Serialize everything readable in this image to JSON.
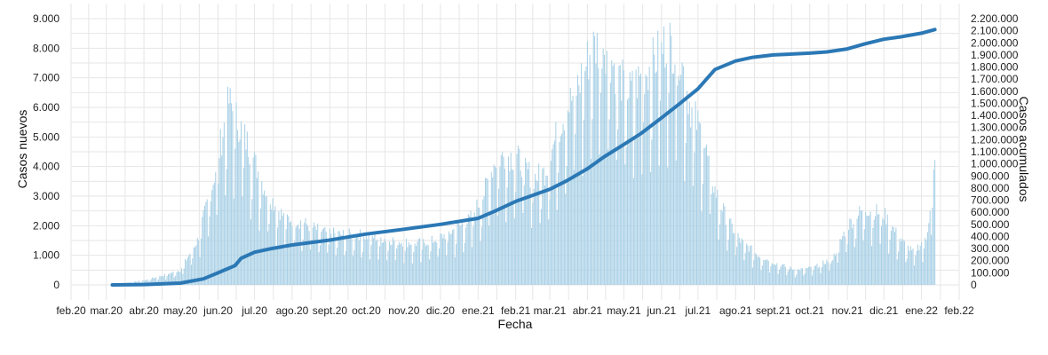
{
  "chart_data": {
    "type": "bar",
    "xlabel": "Fecha",
    "ylabel_left": "Casos nuevos",
    "ylabel_right": "Casos acumulados",
    "x_range": [
      "2020-02-01",
      "2022-02-01"
    ],
    "x_tick_dates": [
      "2020-02-01",
      "2020-03-01",
      "2020-04-01",
      "2020-05-01",
      "2020-06-01",
      "2020-07-01",
      "2020-08-01",
      "2020-09-01",
      "2020-10-01",
      "2020-11-01",
      "2020-12-01",
      "2021-01-01",
      "2021-02-01",
      "2021-03-01",
      "2021-04-01",
      "2021-05-01",
      "2021-06-01",
      "2021-07-01",
      "2021-08-01",
      "2021-09-01",
      "2021-10-01",
      "2021-11-01",
      "2021-12-01",
      "2022-01-01",
      "2022-02-01"
    ],
    "x_tick_labels": [
      "feb.20",
      "mar.20",
      "abr.20",
      "may.20",
      "jun.20",
      "jul.20",
      "ago.20",
      "sept.20",
      "oct.20",
      "nov.20",
      "dic.20",
      "ene.21",
      "feb.21",
      "mar.21",
      "abr.21",
      "may.21",
      "jun.21",
      "jul.21",
      "ago.21",
      "sept.21",
      "oct.21",
      "nov.21",
      "dic.21",
      "ene.22",
      "feb.22"
    ],
    "y_left": {
      "range": [
        0,
        9000
      ],
      "ticks": [
        0,
        1000,
        2000,
        3000,
        4000,
        5000,
        6000,
        7000,
        8000,
        9000
      ],
      "tick_labels": [
        "0",
        "1.000",
        "2.000",
        "3.000",
        "4.000",
        "5.000",
        "6.000",
        "7.000",
        "8.000",
        "9.000"
      ]
    },
    "y_right": {
      "range": [
        0,
        2200000
      ],
      "ticks": [
        0,
        100000,
        200000,
        300000,
        400000,
        500000,
        600000,
        700000,
        800000,
        900000,
        1000000,
        1100000,
        1200000,
        1300000,
        1400000,
        1500000,
        1600000,
        1700000,
        1800000,
        1900000,
        2000000,
        2100000,
        2200000
      ],
      "tick_labels": [
        "0",
        "100.000",
        "200.000",
        "300.000",
        "400.000",
        "500.000",
        "600.000",
        "700.000",
        "800.000",
        "900.000",
        "1.000.000",
        "1.100.000",
        "1.200.000",
        "1.300.000",
        "1.400.000",
        "1.500.000",
        "1.600.000",
        "1.700.000",
        "1.800.000",
        "1.900.000",
        "2.000.000",
        "2.100.000",
        "2.200.000"
      ]
    },
    "grid": true,
    "series": [
      {
        "name": "Casos nuevos",
        "type": "bar",
        "color": "#a9d0e6",
        "x": [
          "2020-03-06",
          "2020-04-01",
          "2020-04-15",
          "2020-05-01",
          "2020-05-15",
          "2020-05-28",
          "2020-06-10",
          "2020-06-25",
          "2020-07-10",
          "2020-07-25",
          "2020-08-10",
          "2020-08-25",
          "2020-09-10",
          "2020-09-25",
          "2020-10-10",
          "2020-10-25",
          "2020-11-10",
          "2020-11-25",
          "2020-12-10",
          "2020-12-25",
          "2021-01-05",
          "2021-01-15",
          "2021-01-25",
          "2021-02-05",
          "2021-02-15",
          "2021-02-25",
          "2021-03-10",
          "2021-03-25",
          "2021-04-05",
          "2021-04-15",
          "2021-04-25",
          "2021-05-05",
          "2021-05-15",
          "2021-05-25",
          "2021-06-05",
          "2021-06-15",
          "2021-06-25",
          "2021-07-05",
          "2021-07-15",
          "2021-07-25",
          "2021-08-05",
          "2021-08-20",
          "2021-09-05",
          "2021-09-20",
          "2021-10-05",
          "2021-10-20",
          "2021-11-01",
          "2021-11-15",
          "2021-12-01",
          "2021-12-15",
          "2021-12-25",
          "2022-01-05",
          "2022-01-12"
        ],
        "values": [
          0,
          150,
          300,
          500,
          1500,
          3500,
          6200,
          4800,
          3200,
          2300,
          2100,
          1800,
          1700,
          1700,
          1600,
          1500,
          1400,
          1500,
          1800,
          2200,
          3000,
          4200,
          4400,
          4200,
          3600,
          3800,
          5500,
          6800,
          8000,
          8200,
          7200,
          6500,
          7000,
          7500,
          8200,
          8000,
          6000,
          5000,
          3200,
          2200,
          1500,
          1000,
          700,
          500,
          600,
          900,
          2000,
          2600,
          2400,
          1500,
          1100,
          1600,
          4000
        ]
      },
      {
        "name": "Casos acumulados",
        "type": "line",
        "color": "#2b78b5",
        "x": [
          "2020-03-06",
          "2020-04-01",
          "2020-05-01",
          "2020-05-20",
          "2020-06-01",
          "2020-06-15",
          "2020-06-20",
          "2020-07-01",
          "2020-07-15",
          "2020-08-01",
          "2020-09-01",
          "2020-10-01",
          "2020-11-01",
          "2020-12-01",
          "2021-01-01",
          "2021-01-15",
          "2021-02-01",
          "2021-03-01",
          "2021-03-15",
          "2021-04-01",
          "2021-04-15",
          "2021-05-01",
          "2021-05-15",
          "2021-06-01",
          "2021-06-15",
          "2021-07-01",
          "2021-07-15",
          "2021-08-01",
          "2021-08-15",
          "2021-09-01",
          "2021-10-01",
          "2021-10-15",
          "2021-11-01",
          "2021-11-15",
          "2021-12-01",
          "2021-12-15",
          "2022-01-01",
          "2022-01-12"
        ],
        "values": [
          0,
          3000,
          15000,
          50000,
          100000,
          160000,
          220000,
          270000,
          300000,
          330000,
          370000,
          420000,
          460000,
          500000,
          550000,
          610000,
          690000,
          790000,
          860000,
          960000,
          1060000,
          1160000,
          1250000,
          1380000,
          1490000,
          1620000,
          1780000,
          1850000,
          1880000,
          1900000,
          1915000,
          1925000,
          1950000,
          1990000,
          2030000,
          2050000,
          2080000,
          2110000
        ]
      }
    ]
  }
}
